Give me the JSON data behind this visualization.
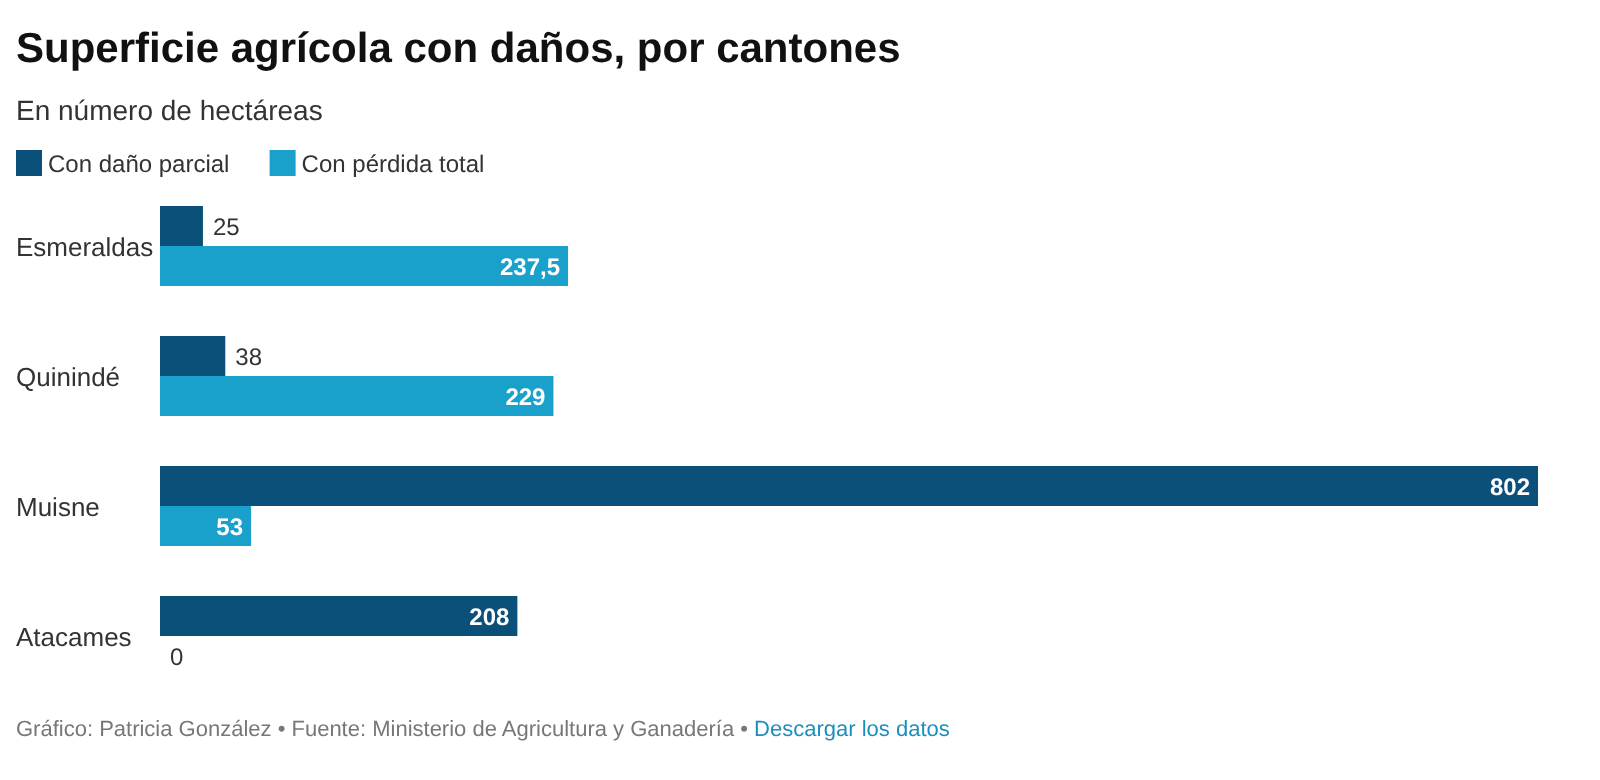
{
  "chart_data": {
    "type": "bar",
    "orientation": "horizontal",
    "title": "Superficie agrícola con daños, por cantones",
    "subtitle": "En número de hectáreas",
    "categories": [
      "Esmeraldas",
      "Quinindé",
      "Muisne",
      "Atacames"
    ],
    "series": [
      {
        "name": "Con daño parcial",
        "color": "#0b5078",
        "values": [
          25,
          38,
          802,
          208
        ],
        "value_labels": [
          "25",
          "38",
          "802",
          "208"
        ]
      },
      {
        "name": "Con pérdida total",
        "color": "#19a1cc",
        "values": [
          237.5,
          229,
          53,
          0
        ],
        "value_labels": [
          "237,5",
          "229",
          "53",
          "0"
        ]
      }
    ],
    "legend": "top left",
    "annotations": [
      "Gráfico: Patricia González • Fuente: Ministerio de Agricultura y Ganadería •",
      "Descargar los datos"
    ]
  }
}
